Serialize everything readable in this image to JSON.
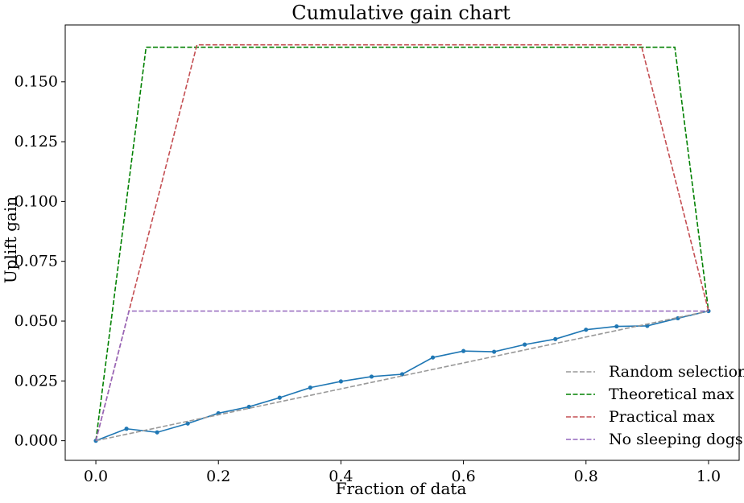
{
  "chart_data": {
    "type": "line",
    "title": "Cumulative gain chart",
    "xlabel": "Fraction of data",
    "ylabel": "Uplift gain",
    "xlim": [
      -0.05,
      1.05
    ],
    "ylim": [
      -0.0082,
      0.1738
    ],
    "x_ticks": [
      0.0,
      0.2,
      0.4,
      0.6,
      0.8,
      1.0
    ],
    "x_tick_labels": [
      "0.0",
      "0.2",
      "0.4",
      "0.6",
      "0.8",
      "1.0"
    ],
    "y_ticks": [
      0.0,
      0.025,
      0.05,
      0.075,
      0.1,
      0.125,
      0.15
    ],
    "y_tick_labels": [
      "0.000",
      "0.025",
      "0.050",
      "0.075",
      "0.100",
      "0.125",
      "0.150"
    ],
    "grid": false,
    "legend_position": "bottom-right",
    "series": [
      {
        "name": "",
        "style": "solid-markers",
        "color": "#1f77b4",
        "x": [
          0.0,
          0.05,
          0.1,
          0.15,
          0.2,
          0.25,
          0.3,
          0.35,
          0.4,
          0.45,
          0.5,
          0.55,
          0.6,
          0.65,
          0.7,
          0.75,
          0.8,
          0.85,
          0.9,
          0.95,
          1.0
        ],
        "y": [
          0.0,
          0.005,
          0.0035,
          0.0072,
          0.0115,
          0.0142,
          0.018,
          0.0222,
          0.0248,
          0.0268,
          0.0278,
          0.0348,
          0.0375,
          0.0372,
          0.0402,
          0.0425,
          0.0464,
          0.0478,
          0.048,
          0.0512,
          0.0542
        ]
      },
      {
        "name": "Random selection",
        "style": "dashed",
        "color": "#999999",
        "x": [
          0.0,
          1.0
        ],
        "y": [
          0.0,
          0.0542
        ]
      },
      {
        "name": "Theoretical max",
        "style": "dashed",
        "color": "#008000",
        "x": [
          0.0,
          0.082,
          0.945,
          1.0
        ],
        "y": [
          0.0,
          0.1645,
          0.1645,
          0.0542
        ]
      },
      {
        "name": "Practical max",
        "style": "dashed",
        "color": "#c44e52",
        "x": [
          0.0,
          0.165,
          0.89,
          1.0
        ],
        "y": [
          0.0,
          0.1655,
          0.1655,
          0.0542
        ]
      },
      {
        "name": "No sleeping dogs",
        "style": "dashed",
        "color": "#9467bd",
        "x": [
          0.0,
          0.054,
          1.0
        ],
        "y": [
          0.0,
          0.0542,
          0.0542
        ]
      }
    ]
  }
}
